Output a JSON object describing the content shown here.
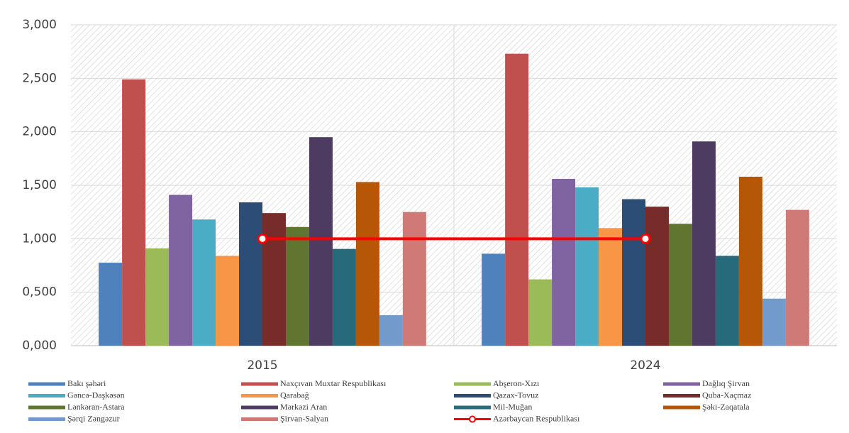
{
  "chart_data": {
    "type": "bar",
    "categories": [
      "2015",
      "2024"
    ],
    "ylim": [
      0,
      3
    ],
    "yticks": [
      {
        "value": 0,
        "label": "0,000"
      },
      {
        "value": 0.5,
        "label": "0,500"
      },
      {
        "value": 1,
        "label": "1,000"
      },
      {
        "value": 1.5,
        "label": "1,500"
      },
      {
        "value": 2,
        "label": "2,000"
      },
      {
        "value": 2.5,
        "label": "2,500"
      },
      {
        "value": 3,
        "label": "3,000"
      }
    ],
    "grid": true,
    "legend": "bottom",
    "series": [
      {
        "name": "Bakı şəhəri",
        "color": "#4f81bd",
        "values": [
          0.776,
          0.86
        ]
      },
      {
        "name": "Naxçıvan Muxtar Respublikası",
        "color": "#c0504d",
        "values": [
          2.49,
          2.73
        ]
      },
      {
        "name": "Abşeron-Xızı",
        "color": "#9bbb59",
        "values": [
          0.91,
          0.62
        ]
      },
      {
        "name": "Dağlıq Şirvan",
        "color": "#8064a2",
        "values": [
          1.41,
          1.56
        ]
      },
      {
        "name": "Gəncə-Daşkəsən",
        "color": "#4bacc6",
        "values": [
          1.18,
          1.48
        ]
      },
      {
        "name": "Qarabağ",
        "color": "#f79646",
        "values": [
          0.84,
          1.1
        ]
      },
      {
        "name": "Qazax-Tovuz",
        "color": "#2c4d75",
        "values": [
          1.34,
          1.37
        ]
      },
      {
        "name": "Quba-Xaçmaz",
        "color": "#772c2a",
        "values": [
          1.24,
          1.3
        ]
      },
      {
        "name": "Lənkəran-Astara",
        "color": "#5f7530",
        "values": [
          1.11,
          1.14
        ]
      },
      {
        "name": "Mərkəzi Aran",
        "color": "#4d3b62",
        "values": [
          1.95,
          1.91
        ]
      },
      {
        "name": "Mil-Muğan",
        "color": "#276a7c",
        "values": [
          0.905,
          0.84
        ]
      },
      {
        "name": "Şəki-Zaqatala",
        "color": "#b65708",
        "values": [
          1.53,
          1.58
        ]
      },
      {
        "name": "Şərqi Zəngəzur",
        "color": "#729aca",
        "values": [
          0.285,
          0.44
        ]
      },
      {
        "name": "Şirvan-Salyan",
        "color": "#d07a78",
        "values": [
          1.25,
          1.27
        ]
      },
      {
        "name": "Azərbaycan Respublikası",
        "color": "#ff0000",
        "type": "line",
        "values": [
          1,
          1
        ]
      }
    ]
  }
}
